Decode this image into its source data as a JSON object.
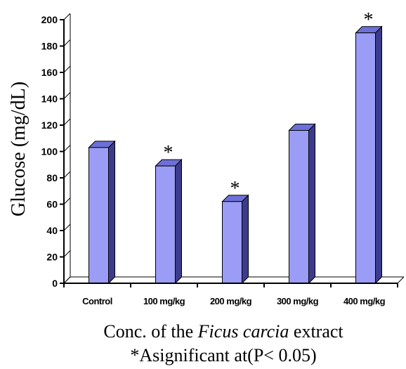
{
  "chart_data": {
    "type": "bar",
    "categories": [
      "Control",
      "100 mg/kg",
      "200 mg/kg",
      "300 mg/kg",
      "400 mg/kg"
    ],
    "values": [
      103,
      89,
      62,
      116,
      190
    ],
    "significant": [
      false,
      true,
      true,
      false,
      true
    ],
    "significance_marker": "*",
    "yticks": [
      "0",
      "20",
      "40",
      "60",
      "80",
      "100",
      "120",
      "140",
      "160",
      "180",
      "200"
    ],
    "ylim": [
      0,
      200
    ],
    "ylabel": "Glucose (mg/dL)",
    "xlabel_prefix": "Conc. of the ",
    "xlabel_italic": "Ficus carcia",
    "xlabel_suffix": " extract",
    "note": "*Asignificant at(P< 0.05)",
    "bar_color": "#9a9cf5",
    "bar_side_color": "#3c3c8c",
    "bar_top_color": "#6e70d8",
    "legend": "none",
    "grid": false
  }
}
